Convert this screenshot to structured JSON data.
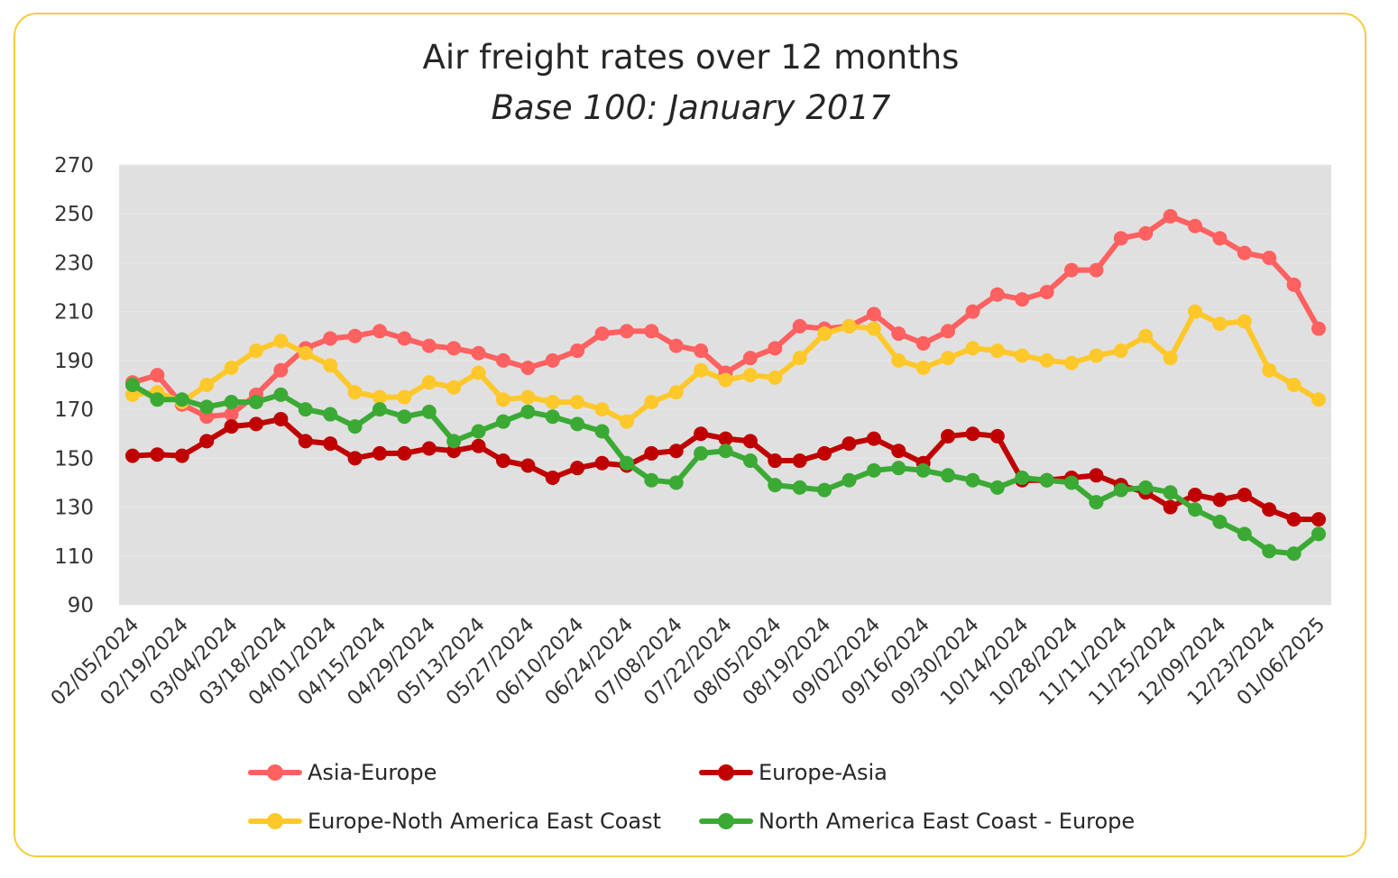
{
  "chart_data": {
    "type": "line",
    "title": "Air freight rates over 12 months",
    "subtitle": "Base 100: January 2017",
    "xlabel": "",
    "ylabel": "",
    "ylim": [
      90,
      270
    ],
    "yticks": [
      90,
      110,
      130,
      150,
      170,
      190,
      210,
      230,
      250,
      270
    ],
    "grid": true,
    "legend": "bottom",
    "x": [
      "02/05/2024",
      "02/12/2024",
      "02/19/2024",
      "02/26/2024",
      "03/04/2024",
      "03/11/2024",
      "03/18/2024",
      "03/25/2024",
      "04/01/2024",
      "04/08/2024",
      "04/15/2024",
      "04/22/2024",
      "04/29/2024",
      "05/06/2024",
      "05/13/2024",
      "05/20/2024",
      "05/27/2024",
      "06/03/2024",
      "06/10/2024",
      "06/17/2024",
      "06/24/2024",
      "07/01/2024",
      "07/08/2024",
      "07/15/2024",
      "07/22/2024",
      "07/29/2024",
      "08/05/2024",
      "08/12/2024",
      "08/19/2024",
      "08/26/2024",
      "09/02/2024",
      "09/09/2024",
      "09/16/2024",
      "09/23/2024",
      "09/30/2024",
      "10/07/2024",
      "10/14/2024",
      "10/21/2024",
      "10/28/2024",
      "11/04/2024",
      "11/11/2024",
      "11/18/2024",
      "11/25/2024",
      "12/02/2024",
      "12/09/2024",
      "12/16/2024",
      "12/23/2024",
      "12/30/2024",
      "01/06/2025"
    ],
    "xtick_labels": [
      "02/05/2024",
      "02/19/2024",
      "03/04/2024",
      "03/18/2024",
      "04/01/2024",
      "04/15/2024",
      "04/29/2024",
      "05/13/2024",
      "05/27/2024",
      "06/10/2024",
      "06/24/2024",
      "07/08/2024",
      "07/22/2024",
      "08/05/2024",
      "08/19/2024",
      "09/02/2024",
      "09/16/2024",
      "09/30/2024",
      "10/14/2024",
      "10/28/2024",
      "11/11/2024",
      "11/25/2024",
      "12/09/2024",
      "12/23/2024",
      "01/06/2025"
    ],
    "series": [
      {
        "name": "Asia-Europe",
        "color": "#ff6060",
        "values": [
          181,
          184,
          172,
          167,
          168,
          176,
          186,
          195,
          199,
          200,
          202,
          199,
          196,
          195,
          193,
          190,
          187,
          190,
          194,
          201,
          202,
          202,
          196,
          194,
          185,
          191,
          195,
          204,
          203,
          204,
          209,
          201,
          197,
          202,
          210,
          217,
          215,
          218,
          227,
          227,
          240,
          242,
          249,
          245,
          240,
          234,
          232,
          221,
          203
        ]
      },
      {
        "name": "Europe-Asia",
        "color": "#c00000",
        "values": [
          151,
          151.5,
          151,
          157,
          163,
          164,
          166,
          157,
          156,
          150,
          152,
          152,
          154,
          153,
          155,
          149,
          147,
          142,
          146,
          148,
          147,
          152,
          153,
          160,
          158,
          157,
          149,
          149,
          152,
          156,
          158,
          153,
          148,
          159,
          160,
          159,
          141,
          141,
          142,
          143,
          139,
          136,
          130,
          135,
          133,
          135,
          129,
          125,
          125
        ]
      },
      {
        "name": "Europe-Noth America East Coast",
        "color": "#ffc82a",
        "values": [
          176,
          177,
          173,
          180,
          187,
          194,
          198,
          193,
          188,
          177,
          175,
          175,
          181,
          179,
          185,
          174,
          175,
          173,
          173,
          170,
          165,
          173,
          177,
          186,
          182,
          184,
          183,
          191,
          201,
          204,
          203,
          190,
          187,
          191,
          195,
          194,
          192,
          190,
          189,
          192,
          194,
          200,
          191,
          210,
          205,
          206,
          186,
          180,
          174
        ]
      },
      {
        "name": "North America East Coast - Europe",
        "color": "#3aaa35",
        "values": [
          180,
          174,
          174,
          171,
          173,
          173,
          176,
          170,
          168,
          163,
          170,
          167,
          169,
          157,
          161,
          165,
          169,
          167,
          164,
          161,
          148,
          141,
          140,
          152,
          153,
          149,
          139,
          138,
          137,
          141,
          145,
          146,
          145,
          143,
          141,
          138,
          142,
          141,
          140,
          132,
          137,
          138,
          136,
          129,
          124,
          119,
          112,
          111,
          119
        ]
      }
    ]
  },
  "colors": {
    "frame": "#f5cc3c",
    "plot_background": "#e0e0e0"
  }
}
